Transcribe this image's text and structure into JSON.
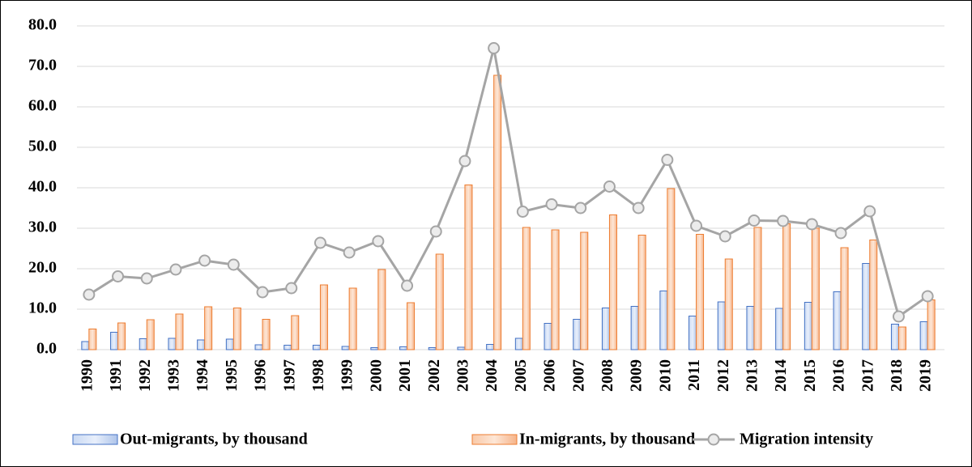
{
  "chart_data": {
    "type": "bar_line",
    "categories": [
      "1990",
      "1991",
      "1992",
      "1993",
      "1994",
      "1995",
      "1996",
      "1997",
      "1998",
      "1999",
      "2000",
      "2001",
      "2002",
      "2003",
      "2004",
      "2005",
      "2006",
      "2007",
      "2008",
      "2009",
      "2010",
      "2011",
      "2012",
      "2013",
      "2014",
      "2015",
      "2016",
      "2017",
      "2018",
      "2019"
    ],
    "series": [
      {
        "name": "Out-migrants, by thousand",
        "kind": "bar",
        "color": "#4472c4",
        "values": [
          2.0,
          4.3,
          2.7,
          2.8,
          2.4,
          2.6,
          1.2,
          1.1,
          1.1,
          0.8,
          0.5,
          0.7,
          0.5,
          0.6,
          1.3,
          2.8,
          6.5,
          7.5,
          10.3,
          10.7,
          14.5,
          8.3,
          11.8,
          10.7,
          10.2,
          11.7,
          14.3,
          21.3,
          6.3,
          6.9
        ]
      },
      {
        "name": "In-migrants, by thousand",
        "kind": "bar",
        "color": "#ed7d31",
        "values": [
          5.1,
          6.6,
          7.4,
          8.8,
          10.6,
          10.3,
          7.5,
          8.4,
          16.0,
          15.2,
          19.8,
          11.6,
          23.6,
          40.7,
          67.8,
          30.2,
          29.6,
          29.0,
          33.3,
          28.3,
          39.8,
          28.5,
          22.4,
          30.2,
          31.1,
          30.0,
          25.2,
          27.1,
          5.6,
          12.3
        ]
      },
      {
        "name": "Migration intensity",
        "kind": "line",
        "color": "#a5a5a5",
        "values": [
          13.6,
          18.1,
          17.6,
          19.8,
          22.0,
          21.0,
          14.2,
          15.2,
          26.4,
          24.0,
          26.8,
          15.8,
          29.2,
          46.6,
          74.5,
          34.1,
          35.9,
          35.0,
          40.3,
          35.0,
          46.9,
          30.6,
          28.0,
          31.9,
          31.8,
          31.0,
          28.8,
          34.2,
          8.2,
          13.2
        ]
      }
    ],
    "ylim": [
      0,
      80
    ],
    "yticks": [
      {
        "value": 0,
        "label": "0.0"
      },
      {
        "value": 10,
        "label": "10.0"
      },
      {
        "value": 20,
        "label": "20.0"
      },
      {
        "value": 30,
        "label": "30.0"
      },
      {
        "value": 40,
        "label": "40.0"
      },
      {
        "value": 50,
        "label": "50.0"
      },
      {
        "value": 60,
        "label": "60.0"
      },
      {
        "value": 70,
        "label": "70.0"
      },
      {
        "value": 80,
        "label": "80.0"
      }
    ],
    "grid": true,
    "legend": "bottom"
  }
}
